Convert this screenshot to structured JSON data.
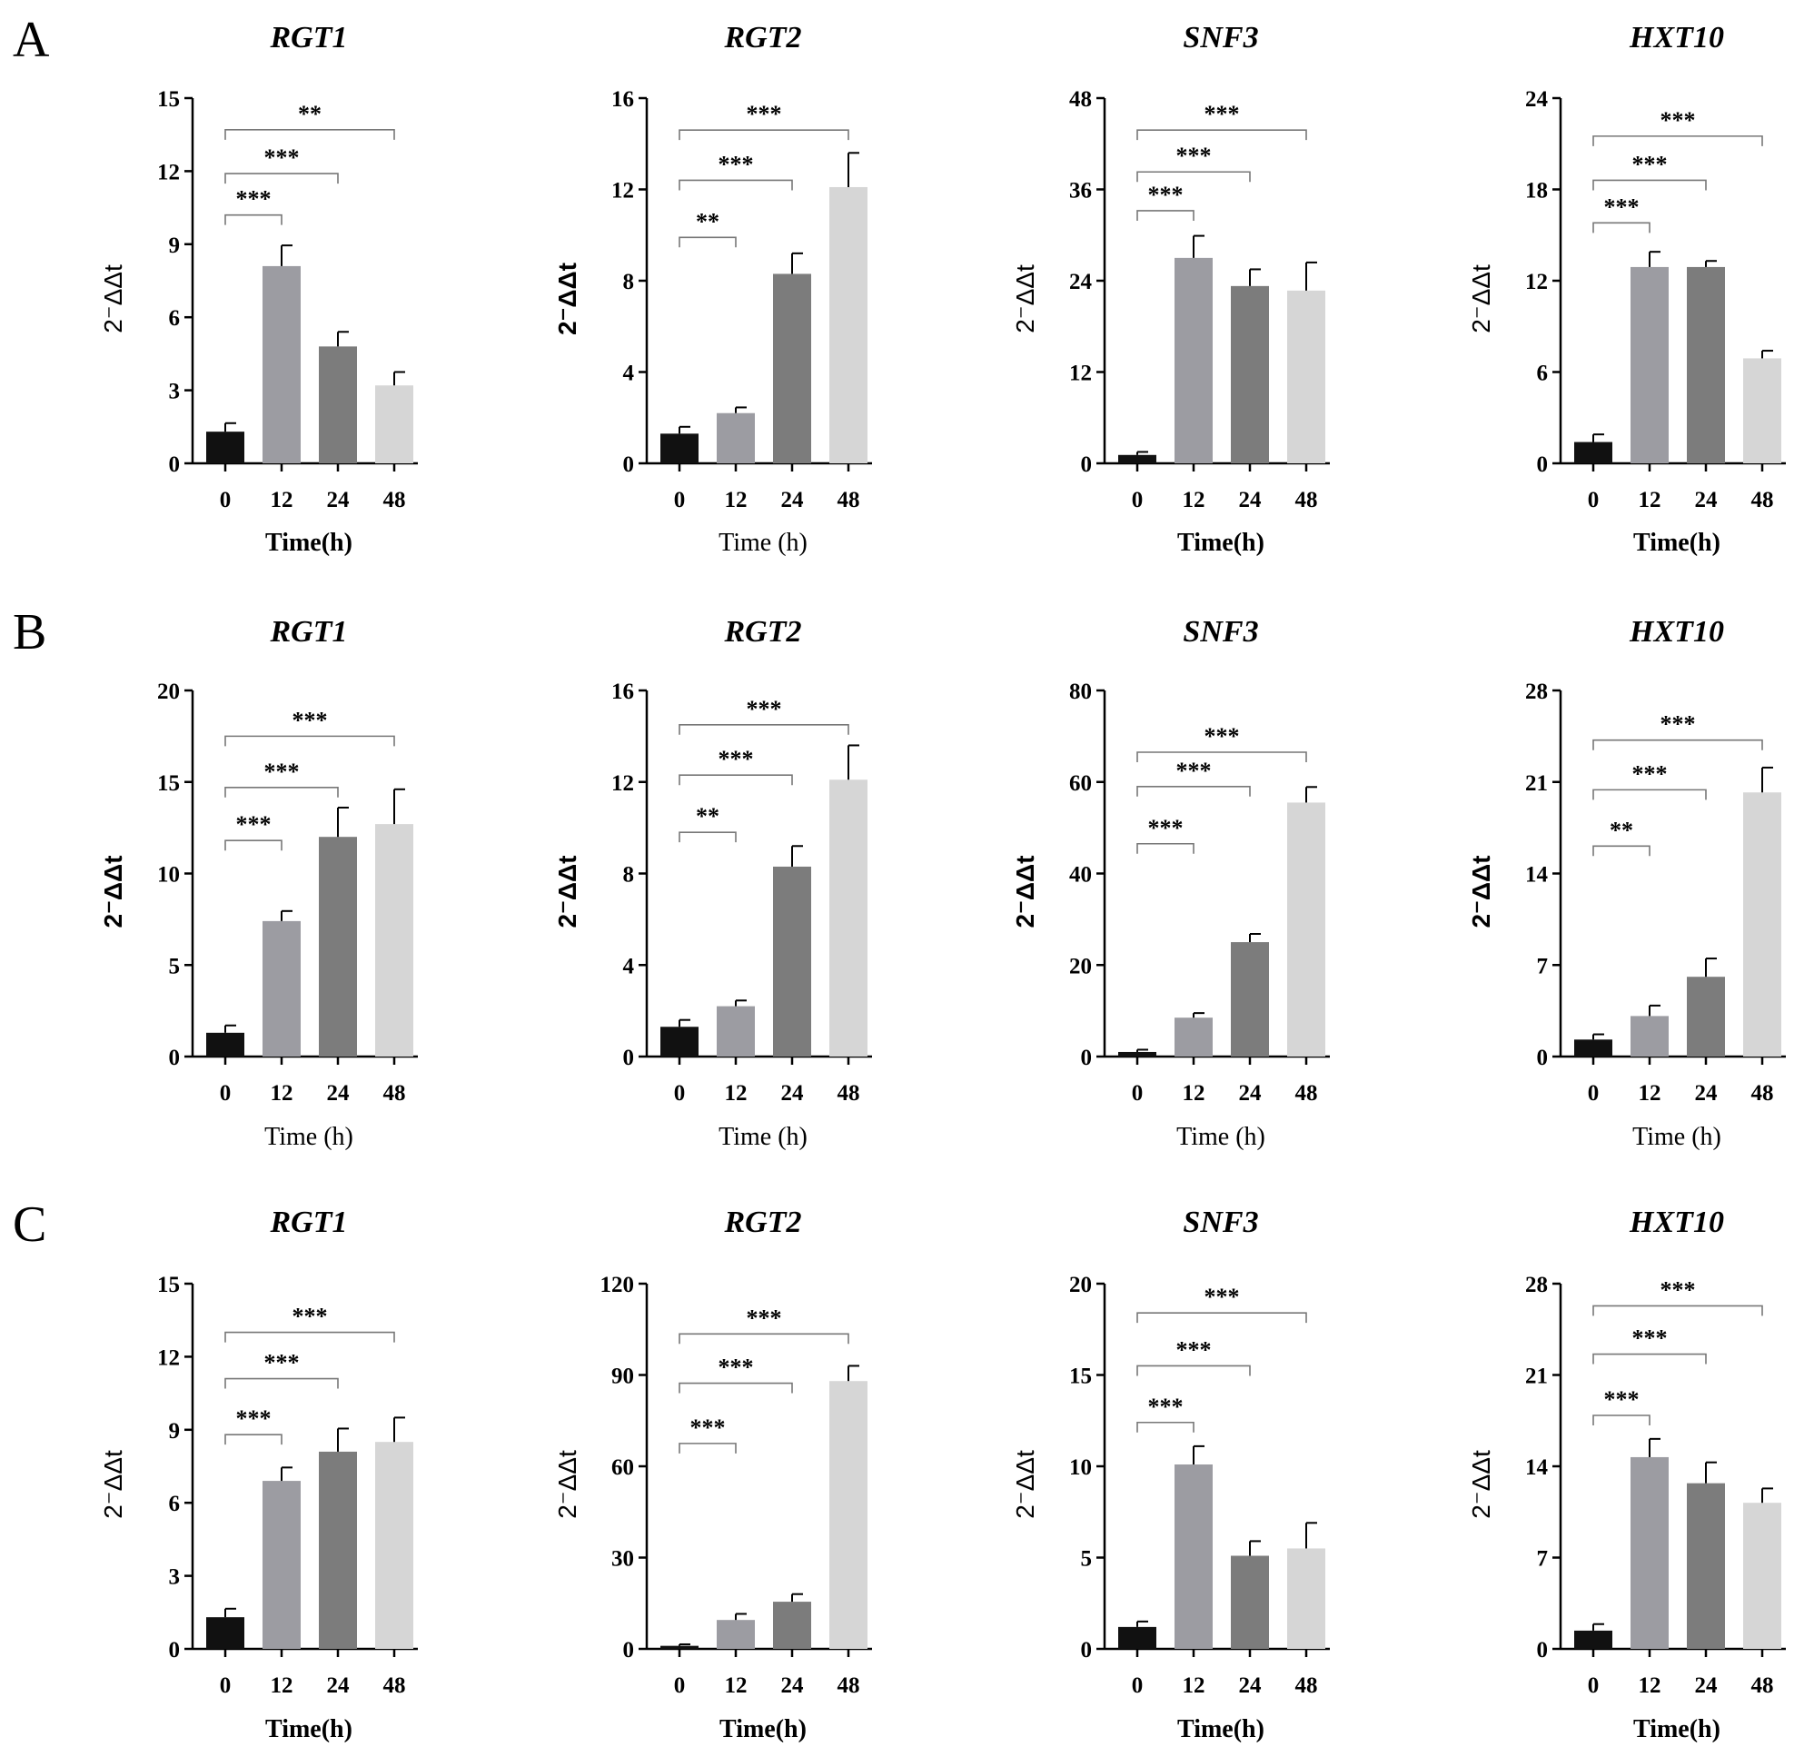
{
  "colors": {
    "t0": "#111111",
    "t12": "#9c9ca2",
    "t24": "#7c7c7c",
    "t48": "#d6d6d6",
    "bracket": "#777777"
  },
  "rows": [
    {
      "panel": "A",
      "charts": [
        {
          "title": "RGT1",
          "ylabel": "2⁻ΔΔt",
          "xlabel": "Time(h)",
          "xlabel_bold": true,
          "ylabel_bold": false,
          "yticks": [
            0,
            3,
            6,
            9,
            12,
            15
          ],
          "ymax": 15,
          "categories": [
            "0",
            "12",
            "24",
            "48"
          ],
          "values": [
            1.3,
            8.1,
            4.8,
            3.2
          ],
          "errors": [
            0.35,
            0.85,
            0.6,
            0.55
          ],
          "sig": [
            {
              "to": 1,
              "label": "***",
              "y": 10.2
            },
            {
              "to": 2,
              "label": "***",
              "y": 11.9
            },
            {
              "to": 3,
              "label": "**",
              "y": 13.7
            }
          ]
        },
        {
          "title": "RGT2",
          "ylabel": "2⁻ΔΔt",
          "xlabel": "Time (h)",
          "xlabel_bold": false,
          "ylabel_bold": true,
          "yticks": [
            0,
            4,
            8,
            12,
            16
          ],
          "ymax": 16,
          "categories": [
            "0",
            "12",
            "24",
            "48"
          ],
          "values": [
            1.3,
            2.2,
            8.3,
            12.1
          ],
          "errors": [
            0.3,
            0.25,
            0.9,
            1.5
          ],
          "sig": [
            {
              "to": 1,
              "label": "**",
              "y": 9.9
            },
            {
              "to": 2,
              "label": "***",
              "y": 12.4
            },
            {
              "to": 3,
              "label": "***",
              "y": 14.6
            }
          ]
        },
        {
          "title": "SNF3",
          "ylabel": "2⁻ΔΔt",
          "xlabel": "Time(h)",
          "xlabel_bold": true,
          "ylabel_bold": false,
          "yticks": [
            0,
            12,
            24,
            36,
            48
          ],
          "ymax": 48,
          "categories": [
            "0",
            "12",
            "24",
            "48"
          ],
          "values": [
            1.1,
            27.0,
            23.3,
            22.7
          ],
          "errors": [
            0.4,
            2.9,
            2.2,
            3.7
          ],
          "sig": [
            {
              "to": 1,
              "label": "***",
              "y": 33.2
            },
            {
              "to": 2,
              "label": "***",
              "y": 38.3
            },
            {
              "to": 3,
              "label": "***",
              "y": 43.8
            }
          ]
        },
        {
          "title": "HXT10",
          "ylabel": "2⁻ΔΔt",
          "xlabel": "Time(h)",
          "xlabel_bold": true,
          "ylabel_bold": false,
          "yticks": [
            0,
            6,
            12,
            18,
            24
          ],
          "ymax": 24,
          "categories": [
            "0",
            "12",
            "24",
            "48"
          ],
          "values": [
            1.4,
            12.9,
            12.9,
            6.9
          ],
          "errors": [
            0.5,
            1.0,
            0.4,
            0.5
          ],
          "sig": [
            {
              "to": 1,
              "label": "***",
              "y": 15.8
            },
            {
              "to": 2,
              "label": "***",
              "y": 18.6
            },
            {
              "to": 3,
              "label": "***",
              "y": 21.5
            }
          ]
        }
      ]
    },
    {
      "panel": "B",
      "charts": [
        {
          "title": "RGT1",
          "ylabel": "2⁻ΔΔt",
          "xlabel": "Time (h)",
          "xlabel_bold": false,
          "ylabel_bold": true,
          "yticks": [
            0,
            5,
            10,
            15,
            20
          ],
          "ymax": 20,
          "categories": [
            "0",
            "12",
            "24",
            "48"
          ],
          "values": [
            1.3,
            7.4,
            12.0,
            12.7
          ],
          "errors": [
            0.4,
            0.55,
            1.6,
            1.9
          ],
          "sig": [
            {
              "to": 1,
              "label": "***",
              "y": 11.8
            },
            {
              "to": 2,
              "label": "***",
              "y": 14.7
            },
            {
              "to": 3,
              "label": "***",
              "y": 17.5
            }
          ]
        },
        {
          "title": "RGT2",
          "ylabel": "2⁻ΔΔt",
          "xlabel": "Time (h)",
          "xlabel_bold": false,
          "ylabel_bold": true,
          "yticks": [
            0,
            4,
            8,
            12,
            16
          ],
          "ymax": 16,
          "categories": [
            "0",
            "12",
            "24",
            "48"
          ],
          "values": [
            1.3,
            2.2,
            8.3,
            12.1
          ],
          "errors": [
            0.3,
            0.25,
            0.9,
            1.5
          ],
          "sig": [
            {
              "to": 1,
              "label": "**",
              "y": 9.8
            },
            {
              "to": 2,
              "label": "***",
              "y": 12.3
            },
            {
              "to": 3,
              "label": "***",
              "y": 14.5
            }
          ]
        },
        {
          "title": "SNF3",
          "ylabel": "2⁻ΔΔt",
          "xlabel": "Time (h)",
          "xlabel_bold": false,
          "ylabel_bold": true,
          "yticks": [
            0,
            20,
            40,
            60,
            80
          ],
          "ymax": 80,
          "categories": [
            "0",
            "12",
            "24",
            "48"
          ],
          "values": [
            1.0,
            8.5,
            25.0,
            55.5
          ],
          "errors": [
            0.5,
            1.0,
            1.8,
            3.4
          ],
          "sig": [
            {
              "to": 1,
              "label": "***",
              "y": 46.5
            },
            {
              "to": 2,
              "label": "***",
              "y": 59.0
            },
            {
              "to": 3,
              "label": "***",
              "y": 66.5
            }
          ]
        },
        {
          "title": "HXT10",
          "ylabel": "2⁻ΔΔt",
          "xlabel": "Time (h)",
          "xlabel_bold": false,
          "ylabel_bold": true,
          "yticks": [
            0,
            7,
            14,
            21,
            28
          ],
          "ymax": 28,
          "categories": [
            "0",
            "12",
            "24",
            "48"
          ],
          "values": [
            1.3,
            3.1,
            6.1,
            20.2
          ],
          "errors": [
            0.4,
            0.8,
            1.4,
            1.9
          ],
          "sig": [
            {
              "to": 1,
              "label": "**",
              "y": 16.1
            },
            {
              "to": 2,
              "label": "***",
              "y": 20.4
            },
            {
              "to": 3,
              "label": "***",
              "y": 24.2
            }
          ]
        }
      ]
    },
    {
      "panel": "C",
      "charts": [
        {
          "title": "RGT1",
          "ylabel": "2⁻ΔΔt",
          "xlabel": "Time(h)",
          "xlabel_bold": true,
          "ylabel_bold": false,
          "yticks": [
            0,
            3,
            6,
            9,
            12,
            15
          ],
          "ymax": 15,
          "categories": [
            "0",
            "12",
            "24",
            "48"
          ],
          "values": [
            1.3,
            6.9,
            8.1,
            8.5
          ],
          "errors": [
            0.35,
            0.55,
            0.95,
            1.0
          ],
          "sig": [
            {
              "to": 1,
              "label": "***",
              "y": 8.8
            },
            {
              "to": 2,
              "label": "***",
              "y": 11.1
            },
            {
              "to": 3,
              "label": "***",
              "y": 13.0
            }
          ]
        },
        {
          "title": "RGT2",
          "ylabel": "2⁻ΔΔt",
          "xlabel": "Time(h)",
          "xlabel_bold": true,
          "ylabel_bold": false,
          "yticks": [
            0,
            30,
            60,
            90,
            120
          ],
          "ymax": 120,
          "categories": [
            "0",
            "12",
            "24",
            "48"
          ],
          "values": [
            1.0,
            9.5,
            15.5,
            88.0
          ],
          "errors": [
            0.5,
            2.0,
            2.5,
            5.0
          ],
          "sig": [
            {
              "to": 1,
              "label": "***",
              "y": 67.5
            },
            {
              "to": 2,
              "label": "***",
              "y": 87.3
            },
            {
              "to": 3,
              "label": "***",
              "y": 103.5
            }
          ]
        },
        {
          "title": "SNF3",
          "ylabel": "2⁻ΔΔt",
          "xlabel": "Time(h)",
          "xlabel_bold": true,
          "ylabel_bold": false,
          "yticks": [
            0,
            5,
            10,
            15,
            20
          ],
          "ymax": 20,
          "categories": [
            "0",
            "12",
            "24",
            "48"
          ],
          "values": [
            1.2,
            10.1,
            5.1,
            5.5
          ],
          "errors": [
            0.3,
            1.0,
            0.8,
            1.4
          ],
          "sig": [
            {
              "to": 1,
              "label": "***",
              "y": 12.4
            },
            {
              "to": 2,
              "label": "***",
              "y": 15.5
            },
            {
              "to": 3,
              "label": "***",
              "y": 18.4
            }
          ]
        },
        {
          "title": "HXT10",
          "ylabel": "2⁻ΔΔt",
          "xlabel": "Time(h)",
          "xlabel_bold": true,
          "ylabel_bold": false,
          "yticks": [
            0,
            7,
            14,
            21,
            28
          ],
          "ymax": 28,
          "categories": [
            "0",
            "12",
            "24",
            "48"
          ],
          "values": [
            1.4,
            14.7,
            12.7,
            11.2
          ],
          "errors": [
            0.5,
            1.4,
            1.6,
            1.1
          ],
          "sig": [
            {
              "to": 1,
              "label": "***",
              "y": 17.9
            },
            {
              "to": 2,
              "label": "***",
              "y": 22.6
            },
            {
              "to": 3,
              "label": "***",
              "y": 26.3
            }
          ]
        }
      ]
    }
  ],
  "chart_data": [
    {
      "type": "bar",
      "panel": "A",
      "title": "RGT1",
      "xlabel": "Time(h)",
      "ylabel": "2⁻ΔΔt",
      "ylim": [
        0,
        15
      ],
      "categories": [
        "0",
        "12",
        "24",
        "48"
      ],
      "values": [
        1.3,
        8.1,
        4.8,
        3.2
      ],
      "errors": [
        0.35,
        0.85,
        0.6,
        0.55
      ],
      "annotations": [
        "***",
        "***",
        "**"
      ]
    },
    {
      "type": "bar",
      "panel": "A",
      "title": "RGT2",
      "xlabel": "Time (h)",
      "ylabel": "2⁻ΔΔt",
      "ylim": [
        0,
        16
      ],
      "categories": [
        "0",
        "12",
        "24",
        "48"
      ],
      "values": [
        1.3,
        2.2,
        8.3,
        12.1
      ],
      "errors": [
        0.3,
        0.25,
        0.9,
        1.5
      ],
      "annotations": [
        "**",
        "***",
        "***"
      ]
    },
    {
      "type": "bar",
      "panel": "A",
      "title": "SNF3",
      "xlabel": "Time(h)",
      "ylabel": "2⁻ΔΔt",
      "ylim": [
        0,
        48
      ],
      "categories": [
        "0",
        "12",
        "24",
        "48"
      ],
      "values": [
        1.1,
        27.0,
        23.3,
        22.7
      ],
      "errors": [
        0.4,
        2.9,
        2.2,
        3.7
      ],
      "annotations": [
        "***",
        "***",
        "***"
      ]
    },
    {
      "type": "bar",
      "panel": "A",
      "title": "HXT10",
      "xlabel": "Time(h)",
      "ylabel": "2⁻ΔΔt",
      "ylim": [
        0,
        24
      ],
      "categories": [
        "0",
        "12",
        "24",
        "48"
      ],
      "values": [
        1.4,
        12.9,
        12.9,
        6.9
      ],
      "errors": [
        0.5,
        1.0,
        0.4,
        0.5
      ],
      "annotations": [
        "***",
        "***",
        "***"
      ]
    },
    {
      "type": "bar",
      "panel": "B",
      "title": "RGT1",
      "xlabel": "Time (h)",
      "ylabel": "2⁻ΔΔt",
      "ylim": [
        0,
        20
      ],
      "categories": [
        "0",
        "12",
        "24",
        "48"
      ],
      "values": [
        1.3,
        7.4,
        12.0,
        12.7
      ],
      "errors": [
        0.4,
        0.55,
        1.6,
        1.9
      ],
      "annotations": [
        "***",
        "***",
        "***"
      ]
    },
    {
      "type": "bar",
      "panel": "B",
      "title": "RGT2",
      "xlabel": "Time (h)",
      "ylabel": "2⁻ΔΔt",
      "ylim": [
        0,
        16
      ],
      "categories": [
        "0",
        "12",
        "24",
        "48"
      ],
      "values": [
        1.3,
        2.2,
        8.3,
        12.1
      ],
      "errors": [
        0.3,
        0.25,
        0.9,
        1.5
      ],
      "annotations": [
        "**",
        "***",
        "***"
      ]
    },
    {
      "type": "bar",
      "panel": "B",
      "title": "SNF3",
      "xlabel": "Time (h)",
      "ylabel": "2⁻ΔΔt",
      "ylim": [
        0,
        80
      ],
      "categories": [
        "0",
        "12",
        "24",
        "48"
      ],
      "values": [
        1.0,
        8.5,
        25.0,
        55.5
      ],
      "errors": [
        0.5,
        1.0,
        1.8,
        3.4
      ],
      "annotations": [
        "***",
        "***",
        "***"
      ]
    },
    {
      "type": "bar",
      "panel": "B",
      "title": "HXT10",
      "xlabel": "Time (h)",
      "ylabel": "2⁻ΔΔt",
      "ylim": [
        0,
        28
      ],
      "categories": [
        "0",
        "12",
        "24",
        "48"
      ],
      "values": [
        1.3,
        3.1,
        6.1,
        20.2
      ],
      "errors": [
        0.4,
        0.8,
        1.4,
        1.9
      ],
      "annotations": [
        "**",
        "***",
        "***"
      ]
    },
    {
      "type": "bar",
      "panel": "C",
      "title": "RGT1",
      "xlabel": "Time(h)",
      "ylabel": "2⁻ΔΔt",
      "ylim": [
        0,
        15
      ],
      "categories": [
        "0",
        "12",
        "24",
        "48"
      ],
      "values": [
        1.3,
        6.9,
        8.1,
        8.5
      ],
      "errors": [
        0.35,
        0.55,
        0.95,
        1.0
      ],
      "annotations": [
        "***",
        "***",
        "***"
      ]
    },
    {
      "type": "bar",
      "panel": "C",
      "title": "RGT2",
      "xlabel": "Time(h)",
      "ylabel": "2⁻ΔΔt",
      "ylim": [
        0,
        120
      ],
      "categories": [
        "0",
        "12",
        "24",
        "48"
      ],
      "values": [
        1.0,
        9.5,
        15.5,
        88.0
      ],
      "errors": [
        0.5,
        2.0,
        2.5,
        5.0
      ],
      "annotations": [
        "***",
        "***",
        "***"
      ]
    },
    {
      "type": "bar",
      "panel": "C",
      "title": "SNF3",
      "xlabel": "Time(h)",
      "ylabel": "2⁻ΔΔt",
      "ylim": [
        0,
        20
      ],
      "categories": [
        "0",
        "12",
        "24",
        "48"
      ],
      "values": [
        1.2,
        10.1,
        5.1,
        5.5
      ],
      "errors": [
        0.3,
        1.0,
        0.8,
        1.4
      ],
      "annotations": [
        "***",
        "***",
        "***"
      ]
    },
    {
      "type": "bar",
      "panel": "C",
      "title": "HXT10",
      "xlabel": "Time(h)",
      "ylabel": "2⁻ΔΔt",
      "ylim": [
        0,
        28
      ],
      "categories": [
        "0",
        "12",
        "24",
        "48"
      ],
      "values": [
        1.4,
        14.7,
        12.7,
        11.2
      ],
      "errors": [
        0.5,
        1.4,
        1.6,
        1.1
      ],
      "annotations": [
        "***",
        "***",
        "***"
      ]
    }
  ]
}
